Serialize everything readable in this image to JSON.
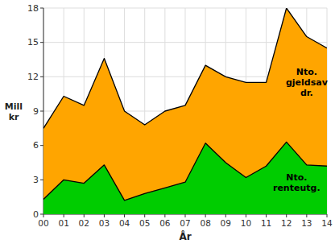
{
  "chart_data": {
    "type": "area",
    "x_label": "År",
    "y_label": "Mill\nkr",
    "x": [
      0,
      1,
      2,
      3,
      4,
      5,
      6,
      7,
      8,
      9,
      10,
      11,
      12,
      13,
      14
    ],
    "xlim": [
      0,
      14
    ],
    "xticks": [
      {
        "value": 0,
        "label": "00"
      },
      {
        "value": 1,
        "label": "01"
      },
      {
        "value": 2,
        "label": "02"
      },
      {
        "value": 3,
        "label": "03"
      },
      {
        "value": 4,
        "label": "04"
      },
      {
        "value": 5,
        "label": "05"
      },
      {
        "value": 6,
        "label": "06"
      },
      {
        "value": 7,
        "label": "07"
      },
      {
        "value": 8,
        "label": "08"
      },
      {
        "value": 9,
        "label": "09"
      },
      10,
      11,
      12,
      13,
      14
    ],
    "ylim": [
      0,
      18
    ],
    "yticks": [
      0,
      3,
      6,
      9,
      12,
      15,
      18
    ],
    "grid": true,
    "series": [
      {
        "color": "#FFA500",
        "values": [
          7.5,
          10.3,
          9.5,
          13.6,
          9.0,
          7.8,
          9.0,
          9.5,
          13.0,
          12.0,
          11.5,
          11.5,
          18.0,
          15.5,
          14.5
        ]
      },
      {
        "color": "#00CC00",
        "values": [
          1.3,
          3.0,
          2.7,
          4.3,
          1.2,
          1.8,
          2.3,
          2.8,
          6.2,
          4.5,
          3.2,
          4.2,
          6.3,
          4.3,
          4.2
        ]
      }
    ],
    "annotations": [
      {
        "text": "Nto.\ngjeldsav\ndr.",
        "x": 13.0,
        "y": 11.5
      },
      {
        "text": "Nto.\nrenteutg.",
        "x": 12.5,
        "y": 2.8
      }
    ]
  }
}
